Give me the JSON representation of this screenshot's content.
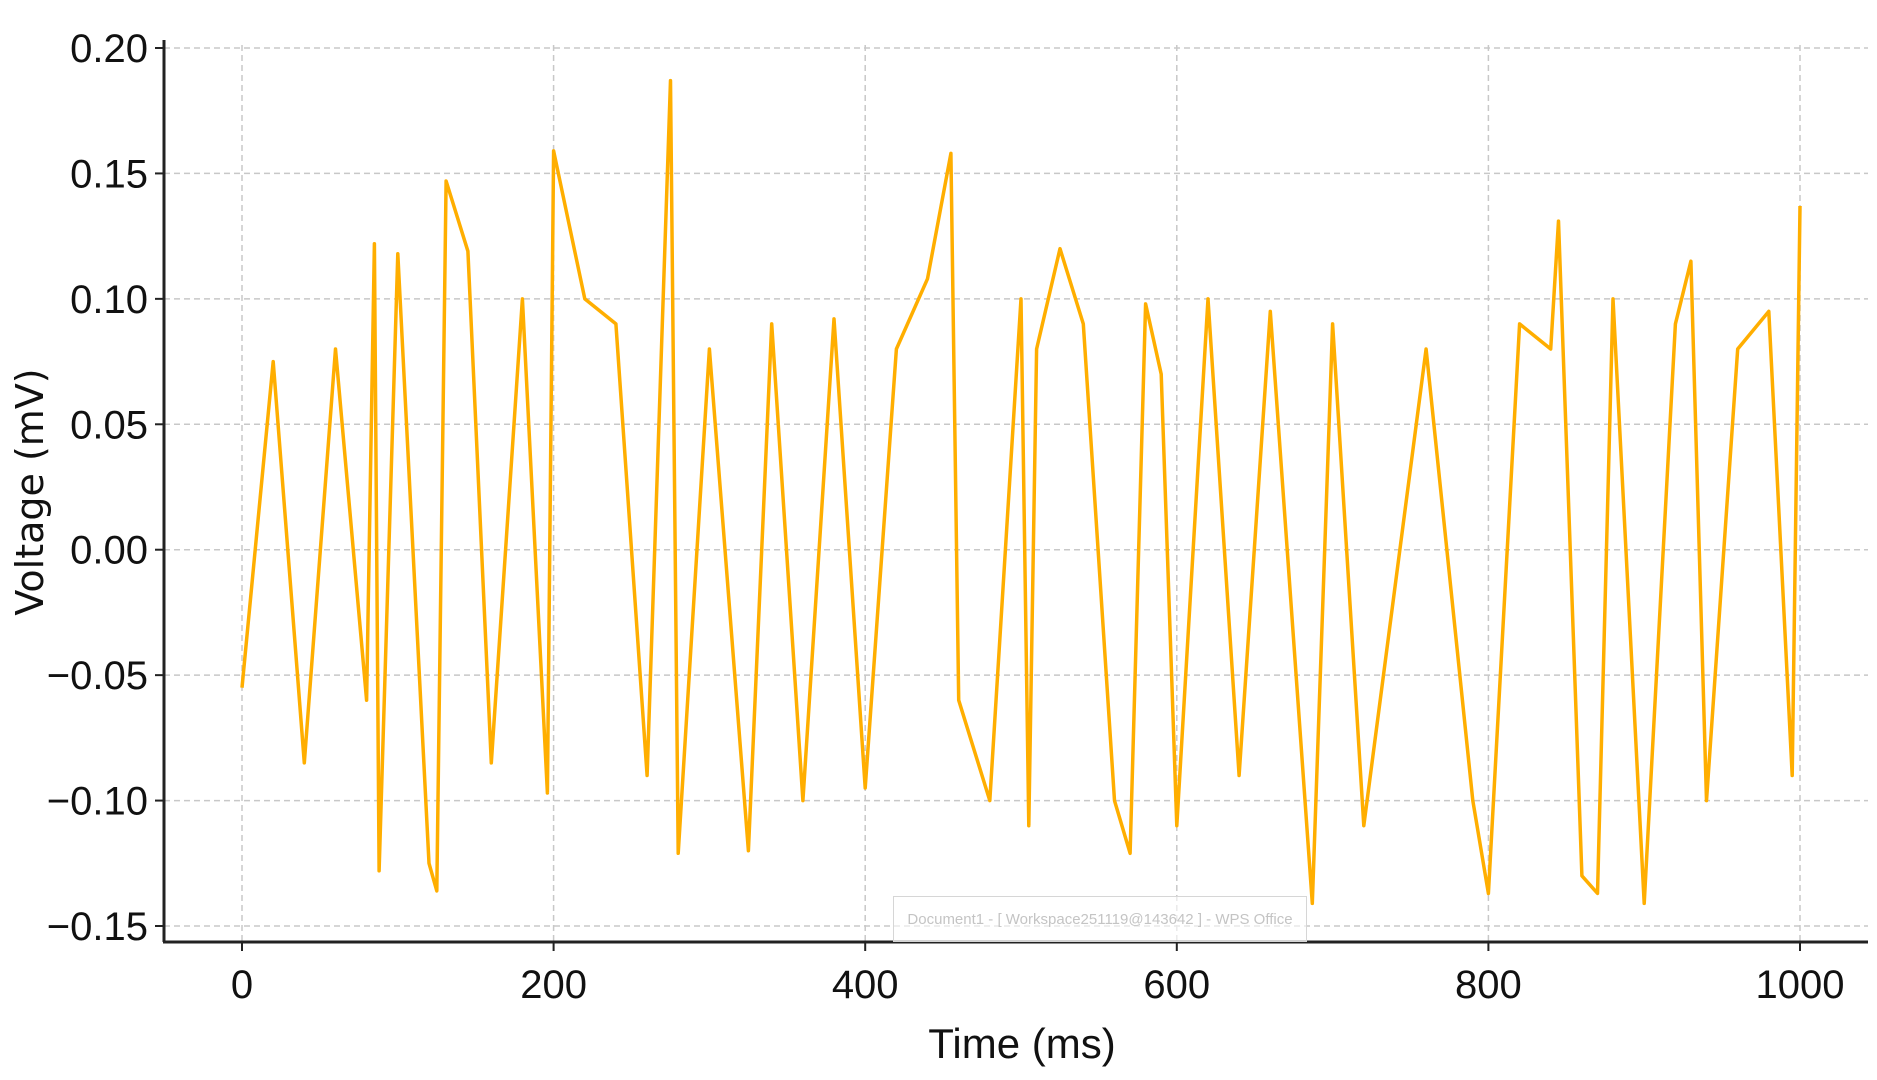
{
  "chart_data": {
    "type": "line",
    "title": "",
    "xlabel": "Time (ms)",
    "ylabel": "Voltage (mV)",
    "xlim": [
      -50,
      1045
    ],
    "ylim": [
      -0.157,
      0.2
    ],
    "x_ticks": [
      0,
      200,
      400,
      600,
      800,
      1000
    ],
    "x_tick_labels": [
      "0",
      "200",
      "400",
      "600",
      "800",
      "1000"
    ],
    "y_ticks": [
      0.2,
      0.15,
      0.1,
      0.05,
      0.0,
      -0.05,
      -0.1,
      -0.15
    ],
    "y_tick_labels": [
      "0.20",
      "0.15",
      "0.10",
      "0.05",
      "0.00",
      "−0.05",
      "−0.10",
      "−0.15"
    ],
    "grid": true,
    "legend": "none",
    "series": [
      {
        "color": "#FFAE00",
        "x": [
          0,
          20,
          40,
          60,
          80,
          85,
          88,
          100,
          120,
          125,
          131,
          145,
          160,
          180,
          196,
          200,
          220,
          240,
          260,
          275,
          280,
          300,
          325,
          340,
          360,
          380,
          400,
          420,
          440,
          455,
          460,
          480,
          500,
          505,
          510,
          525,
          540,
          560,
          570,
          580,
          590,
          600,
          620,
          640,
          660,
          687,
          700,
          720,
          760,
          790,
          800,
          820,
          840,
          845,
          860,
          870,
          880,
          900,
          920,
          930,
          940,
          960,
          980,
          995,
          1000
        ],
        "y": [
          -0.055,
          0.075,
          -0.085,
          0.08,
          -0.06,
          0.122,
          -0.128,
          0.118,
          -0.125,
          -0.136,
          0.147,
          0.119,
          -0.085,
          0.1,
          -0.097,
          0.159,
          0.1,
          0.09,
          -0.09,
          0.187,
          -0.121,
          0.08,
          -0.12,
          0.09,
          -0.1,
          0.092,
          -0.095,
          0.08,
          0.108,
          0.158,
          -0.06,
          -0.1,
          0.1,
          -0.11,
          0.08,
          0.12,
          0.09,
          -0.1,
          -0.121,
          0.098,
          0.07,
          -0.11,
          0.1,
          -0.09,
          0.095,
          -0.141,
          0.09,
          -0.11,
          0.08,
          -0.1,
          -0.137,
          0.09,
          0.08,
          0.131,
          -0.13,
          -0.137,
          0.1,
          -0.141,
          0.09,
          0.115,
          -0.1,
          0.08,
          0.095,
          -0.09,
          0.137
        ]
      }
    ]
  },
  "watermark": {
    "text": "Document1 - [ Workspace251119@143642 ] - WPS Office"
  }
}
